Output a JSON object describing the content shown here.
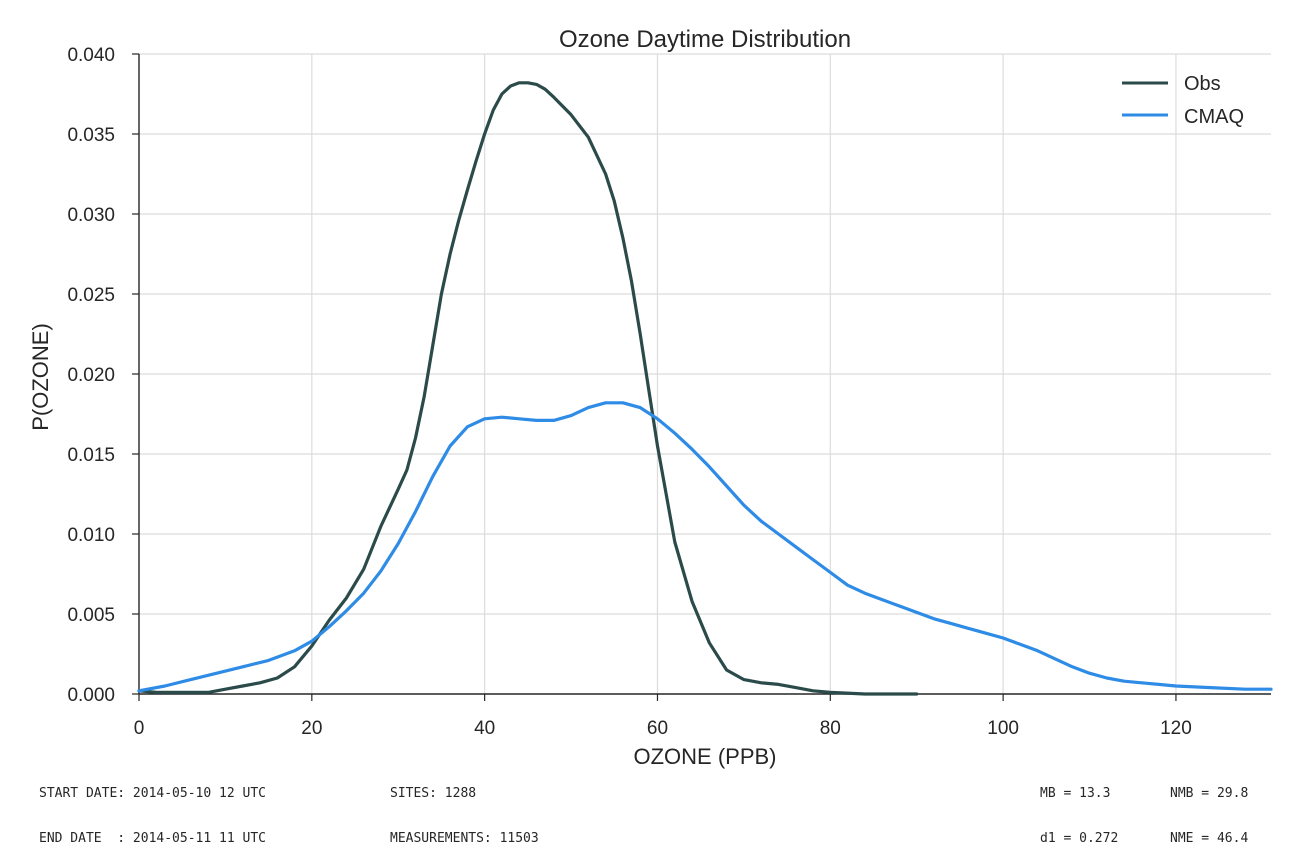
{
  "chart_data": {
    "type": "line",
    "title": "Ozone Daytime Distribution",
    "xlabel": "OZONE  (PPB)",
    "ylabel": "P(OZONE)",
    "xlim": [
      0,
      131
    ],
    "ylim": [
      0,
      0.04
    ],
    "xticks": [
      "0",
      "20",
      "40",
      "60",
      "80",
      "100",
      "120"
    ],
    "yticks": [
      "0.000",
      "0.005",
      "0.010",
      "0.015",
      "0.020",
      "0.025",
      "0.030",
      "0.035",
      "0.040"
    ],
    "grid": true,
    "legend_position": "top-right",
    "series": [
      {
        "name": "Obs",
        "color": "#2b4a4a",
        "x": [
          0,
          2,
          5,
          8,
          10,
          12,
          14,
          16,
          18,
          20,
          22,
          24,
          26,
          28,
          30,
          31,
          32,
          33,
          34,
          35,
          36,
          37,
          38,
          39,
          40,
          41,
          42,
          43,
          44,
          45,
          46,
          47,
          48,
          50,
          52,
          54,
          55,
          56,
          57,
          58,
          59,
          60,
          62,
          64,
          66,
          68,
          70,
          72,
          74,
          76,
          78,
          80,
          84,
          90
        ],
        "y": [
          0.0002,
          0.0001,
          0.0001,
          0.0001,
          0.0003,
          0.0005,
          0.0007,
          0.001,
          0.0017,
          0.003,
          0.0046,
          0.006,
          0.0078,
          0.0105,
          0.0128,
          0.014,
          0.016,
          0.0186,
          0.0218,
          0.025,
          0.0275,
          0.0296,
          0.0315,
          0.0333,
          0.035,
          0.0365,
          0.0375,
          0.038,
          0.0382,
          0.0382,
          0.0381,
          0.0378,
          0.0373,
          0.0362,
          0.0348,
          0.0325,
          0.0308,
          0.0285,
          0.0258,
          0.0225,
          0.019,
          0.0155,
          0.0095,
          0.0058,
          0.0032,
          0.0015,
          0.0009,
          0.0007,
          0.0006,
          0.0004,
          0.0002,
          0.0001,
          0.0,
          0.0
        ]
      },
      {
        "name": "CMAQ",
        "color": "#2e8be6",
        "x": [
          0,
          3,
          6,
          9,
          12,
          15,
          18,
          20,
          22,
          24,
          26,
          28,
          30,
          32,
          34,
          36,
          38,
          40,
          42,
          44,
          46,
          48,
          50,
          52,
          54,
          56,
          58,
          60,
          62,
          64,
          66,
          68,
          70,
          72,
          74,
          76,
          78,
          80,
          82,
          84,
          86,
          88,
          90,
          92,
          94,
          96,
          98,
          100,
          102,
          104,
          106,
          108,
          110,
          112,
          114,
          116,
          118,
          120,
          124,
          128,
          131
        ],
        "y": [
          0.0002,
          0.0005,
          0.0009,
          0.0013,
          0.0017,
          0.0021,
          0.0027,
          0.0033,
          0.0042,
          0.0052,
          0.0063,
          0.0077,
          0.0094,
          0.0114,
          0.0136,
          0.0155,
          0.0167,
          0.0172,
          0.0173,
          0.0172,
          0.0171,
          0.0171,
          0.0174,
          0.0179,
          0.0182,
          0.0182,
          0.0179,
          0.0172,
          0.0163,
          0.0153,
          0.0142,
          0.013,
          0.0118,
          0.0108,
          0.01,
          0.0092,
          0.0084,
          0.0076,
          0.0068,
          0.0063,
          0.0059,
          0.0055,
          0.0051,
          0.0047,
          0.0044,
          0.0041,
          0.0038,
          0.0035,
          0.0031,
          0.0027,
          0.0022,
          0.0017,
          0.0013,
          0.001,
          0.0008,
          0.0007,
          0.0006,
          0.0005,
          0.0004,
          0.0003,
          0.0003
        ]
      }
    ]
  },
  "footer": {
    "start_date": "START DATE: 2014-05-10 12 UTC",
    "end_date": "END DATE  : 2014-05-11 11 UTC",
    "sites": "SITES: 1288",
    "measurements": "MEASUREMENTS: 11503",
    "mb": "MB = 13.3",
    "nmb": "NMB = 29.8",
    "d1": "d1 = 0.272",
    "nme": "NME = 46.4"
  }
}
